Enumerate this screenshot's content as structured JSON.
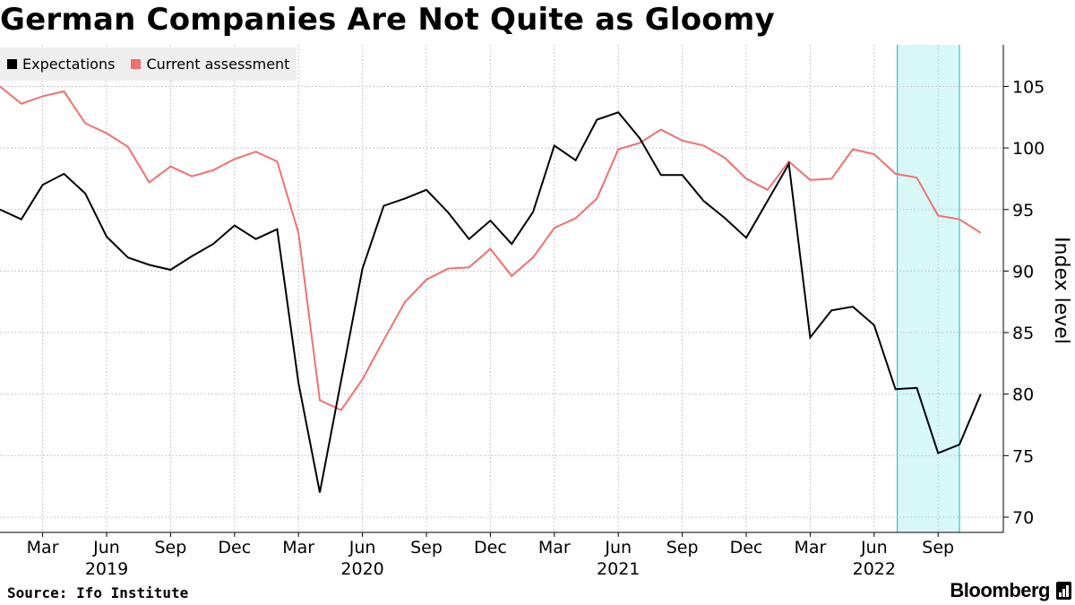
{
  "header": {
    "title": "German Companies Are Not Quite as Gloomy"
  },
  "footer": {
    "source": "Source: Ifo Institute",
    "brand": "Bloomberg"
  },
  "colors": {
    "expectations": "#000000",
    "current": "#f07070",
    "highlight_fill": "#d8f7f7",
    "highlight_line": "#2ec4c4",
    "grid": "#c8c8c8",
    "legend_bg": "#eeeeee"
  },
  "chart_data": {
    "type": "line",
    "title": "German Companies Are Not Quite as Gloomy",
    "ylabel": "Index level",
    "xlabel": "",
    "ylim": [
      69,
      108
    ],
    "yticks": [
      70,
      75,
      80,
      85,
      90,
      95,
      100,
      105
    ],
    "y_axis_side": "right",
    "grid": true,
    "legend": "top-left",
    "x": [
      "2019-01",
      "2019-02",
      "2019-03",
      "2019-04",
      "2019-05",
      "2019-06",
      "2019-07",
      "2019-08",
      "2019-09",
      "2019-10",
      "2019-11",
      "2019-12",
      "2020-01",
      "2020-02",
      "2020-03",
      "2020-04",
      "2020-05",
      "2020-06",
      "2020-07",
      "2020-08",
      "2020-09",
      "2020-10",
      "2020-11",
      "2020-12",
      "2021-01",
      "2021-02",
      "2021-03",
      "2021-04",
      "2021-05",
      "2021-06",
      "2021-07",
      "2021-08",
      "2021-09",
      "2021-10",
      "2021-11",
      "2021-12",
      "2022-01",
      "2022-02",
      "2022-03",
      "2022-04",
      "2022-05",
      "2022-06",
      "2022-07",
      "2022-08",
      "2022-09",
      "2022-10",
      "2022-11"
    ],
    "x_tick_labels": [
      {
        "date": "2019-03",
        "label": "Mar"
      },
      {
        "date": "2019-06",
        "label": "Jun"
      },
      {
        "date": "2019-09",
        "label": "Sep"
      },
      {
        "date": "2019-12",
        "label": "Dec"
      },
      {
        "date": "2020-03",
        "label": "Mar"
      },
      {
        "date": "2020-06",
        "label": "Jun"
      },
      {
        "date": "2020-09",
        "label": "Sep"
      },
      {
        "date": "2020-12",
        "label": "Dec"
      },
      {
        "date": "2021-03",
        "label": "Mar"
      },
      {
        "date": "2021-06",
        "label": "Jun"
      },
      {
        "date": "2021-09",
        "label": "Sep"
      },
      {
        "date": "2021-12",
        "label": "Dec"
      },
      {
        "date": "2022-03",
        "label": "Mar"
      },
      {
        "date": "2022-06",
        "label": "Jun"
      },
      {
        "date": "2022-09",
        "label": "Sep"
      }
    ],
    "x_year_labels": [
      {
        "date": "2019-06",
        "label": "2019"
      },
      {
        "date": "2020-06",
        "label": "2020"
      },
      {
        "date": "2021-06",
        "label": "2021"
      },
      {
        "date": "2022-06",
        "label": "2022"
      }
    ],
    "highlight": {
      "start": "2022-07",
      "end": "2022-10"
    },
    "series": [
      {
        "name": "Expectations",
        "values": [
          95.0,
          94.2,
          97.0,
          97.9,
          96.3,
          92.8,
          91.1,
          90.5,
          90.1,
          91.2,
          92.2,
          93.7,
          92.6,
          93.4,
          80.9,
          72.0,
          81.1,
          90.2,
          95.3,
          95.9,
          96.6,
          94.8,
          92.6,
          94.1,
          92.2,
          94.8,
          100.2,
          99.0,
          102.3,
          102.9,
          100.8,
          97.8,
          97.8,
          95.7,
          94.3,
          92.7,
          95.7,
          98.7,
          84.6,
          86.8,
          87.1,
          85.6,
          80.4,
          80.5,
          75.2,
          75.9,
          80.0
        ]
      },
      {
        "name": "Current assessment",
        "values": [
          105.0,
          103.6,
          104.2,
          104.6,
          102.0,
          101.2,
          100.1,
          97.2,
          98.5,
          97.7,
          98.2,
          99.1,
          99.7,
          98.9,
          93.1,
          79.5,
          78.7,
          81.2,
          84.4,
          87.5,
          89.3,
          90.2,
          90.3,
          91.8,
          89.6,
          91.1,
          93.5,
          94.3,
          95.9,
          99.9,
          100.4,
          101.5,
          100.6,
          100.2,
          99.2,
          97.5,
          96.6,
          98.9,
          97.4,
          97.5,
          99.9,
          99.5,
          97.9,
          97.6,
          94.5,
          94.2,
          93.1
        ]
      }
    ]
  }
}
